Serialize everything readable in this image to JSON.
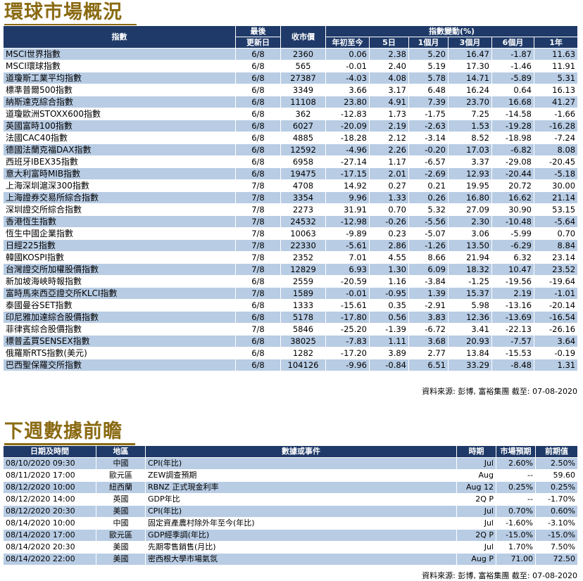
{
  "section1": {
    "title": "環球市場概況",
    "headers": {
      "index": "指數",
      "last_update_1": "最後",
      "last_update_2": "更新日",
      "close": "收市價",
      "change_group": "指數變動(%)",
      "ytd": "年初至今",
      "d5": "5日",
      "m1": "1個月",
      "m3": "3個月",
      "m6": "6個月",
      "y1": "1年"
    },
    "rows": [
      [
        "MSCI世界指數",
        "6/8",
        "2360",
        "0.06",
        "2.38",
        "5.20",
        "16.47",
        "-1.87",
        "11.63"
      ],
      [
        "MSCI環球指數",
        "6/8",
        "565",
        "-0.01",
        "2.40",
        "5.19",
        "17.30",
        "-1.46",
        "11.91"
      ],
      [
        "道瓊斯工業平均指數",
        "6/8",
        "27387",
        "-4.03",
        "4.08",
        "5.78",
        "14.71",
        "-5.89",
        "5.31"
      ],
      [
        "標準普爾500指數",
        "6/8",
        "3349",
        "3.66",
        "3.17",
        "6.48",
        "16.24",
        "0.64",
        "16.13"
      ],
      [
        "納斯達克綜合指數",
        "6/8",
        "11108",
        "23.80",
        "4.91",
        "7.39",
        "23.70",
        "16.68",
        "41.27"
      ],
      [
        "道瓊歐洲STOXX600指數",
        "6/8",
        "362",
        "-12.83",
        "1.73",
        "-1.75",
        "7.25",
        "-14.58",
        "-1.66"
      ],
      [
        "英國富時100指數",
        "6/8",
        "6027",
        "-20.09",
        "2.19",
        "-2.63",
        "1.53",
        "-19.28",
        "-16.28"
      ],
      [
        "法國CAC40指數",
        "6/8",
        "4885",
        "-18.28",
        "2.12",
        "-3.14",
        "8.52",
        "-18.98",
        "-7.24"
      ],
      [
        "德國法蘭克福DAX指數",
        "6/8",
        "12592",
        "-4.96",
        "2.26",
        "-0.20",
        "17.03",
        "-6.82",
        "8.08"
      ],
      [
        "西班牙IBEX35指數",
        "6/8",
        "6958",
        "-27.14",
        "1.17",
        "-6.57",
        "3.37",
        "-29.08",
        "-20.45"
      ],
      [
        "意大利富時MIB指數",
        "6/8",
        "19475",
        "-17.15",
        "2.01",
        "-2.69",
        "12.93",
        "-20.44",
        "-5.18"
      ],
      [
        "上海深圳滬深300指數",
        "7/8",
        "4708",
        "14.92",
        "0.27",
        "0.21",
        "19.95",
        "20.72",
        "30.00"
      ],
      [
        "上海證券交易所綜合指數",
        "7/8",
        "3354",
        "9.96",
        "1.33",
        "0.26",
        "16.80",
        "16.62",
        "21.14"
      ],
      [
        "深圳證交所綜合指數",
        "7/8",
        "2273",
        "31.91",
        "0.70",
        "5.32",
        "27.09",
        "30.90",
        "53.15"
      ],
      [
        "香港恆生指數",
        "7/8",
        "24532",
        "-12.98",
        "-0.26",
        "-5.56",
        "2.30",
        "-10.48",
        "-5.64"
      ],
      [
        "恆生中國企業指數",
        "7/8",
        "10063",
        "-9.89",
        "0.23",
        "-5.07",
        "3.06",
        "-5.99",
        "0.70"
      ],
      [
        "日經225指數",
        "7/8",
        "22330",
        "-5.61",
        "2.86",
        "-1.26",
        "13.50",
        "-6.29",
        "8.84"
      ],
      [
        "韓國KOSPI指數",
        "7/8",
        "2352",
        "7.01",
        "4.55",
        "8.66",
        "21.94",
        "6.32",
        "23.14"
      ],
      [
        "台灣證交所加權股價指數",
        "7/8",
        "12829",
        "6.93",
        "1.30",
        "6.09",
        "18.32",
        "10.47",
        "23.52"
      ],
      [
        "新加坡海峽時報指數",
        "6/8",
        "2559",
        "-20.59",
        "1.16",
        "-3.84",
        "-1.25",
        "-19.56",
        "-19.64"
      ],
      [
        "富時馬來西亞證交所KLCI指數",
        "7/8",
        "1589",
        "-0.01",
        "-0.95",
        "1.39",
        "15.37",
        "2.19",
        "-1.01"
      ],
      [
        "泰國曼谷SET指數",
        "6/8",
        "1333",
        "-15.61",
        "0.35",
        "-2.91",
        "5.98",
        "-13.16",
        "-20.14"
      ],
      [
        "印尼雅加達綜合股價指數",
        "6/8",
        "5178",
        "-17.80",
        "0.56",
        "3.83",
        "12.36",
        "-13.69",
        "-16.54"
      ],
      [
        "菲律賓綜合股價指數",
        "7/8",
        "5846",
        "-25.20",
        "-1.39",
        "-6.72",
        "3.41",
        "-22.13",
        "-26.16"
      ],
      [
        "標普孟買SENSEX指數",
        "6/8",
        "38025",
        "-7.83",
        "1.11",
        "3.68",
        "20.93",
        "-7.57",
        "3.64"
      ],
      [
        "俄羅斯RTS指數(美元)",
        "6/8",
        "1282",
        "-17.20",
        "3.89",
        "2.77",
        "13.84",
        "-15.53",
        "-0.19"
      ],
      [
        "巴西聖保羅交所指數",
        "6/8",
        "104126",
        "-9.96",
        "-0.84",
        "6.51",
        "33.29",
        "-8.48",
        "1.31"
      ]
    ],
    "source": "資料來源: 彭博, 富裕集團 截至: 07-08-2020"
  },
  "section2": {
    "title": "下週數據前瞻",
    "headers": {
      "datetime": "日期及時間",
      "region": "地區",
      "event": "數據或事件",
      "period": "時期",
      "forecast": "市場預期",
      "previous": "前期值"
    },
    "rows": [
      [
        "08/10/2020 09:30",
        "中國",
        "CPI(年比)",
        "Jul",
        "2.60%",
        "2.50%"
      ],
      [
        "08/11/2020 17:00",
        "歐元區",
        "ZEW調查預期",
        "Aug",
        "--",
        "59.60"
      ],
      [
        "08/12/2020 10:00",
        "紐西蘭",
        "RBNZ 正式現金利率",
        "Aug 12",
        "0.25%",
        "0.25%"
      ],
      [
        "08/12/2020 14:00",
        "英國",
        "GDP年比",
        "2Q P",
        "--",
        "-1.70%"
      ],
      [
        "08/12/2020 20:30",
        "美國",
        "CPI(年比)",
        "Jul",
        "0.70%",
        "0.60%"
      ],
      [
        "08/14/2020 10:00",
        "中國",
        "固定資產農村除外年至今(年比)",
        "Jul",
        "-1.60%",
        "-3.10%"
      ],
      [
        "08/14/2020 17:00",
        "歐元區",
        "GDP經季調(年比)",
        "2Q P",
        "-15.0%",
        "-15.0%"
      ],
      [
        "08/14/2020 20:30",
        "美國",
        "先期零售銷售(月比)",
        "Jul",
        "1.70%",
        "7.50%"
      ],
      [
        "08/14/2020 22:00",
        "美國",
        "密西根大學市場氣氛",
        "Aug P",
        "71.00",
        "72.50"
      ]
    ],
    "source": "資料來源: 彭博, 富裕集團 截至: 07-08-2020"
  }
}
